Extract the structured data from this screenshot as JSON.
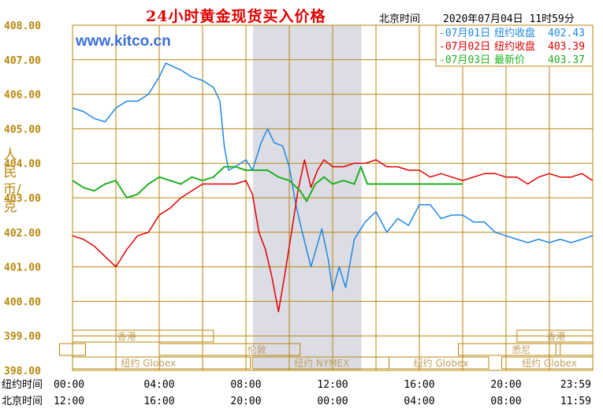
{
  "title": "24小时黄金现货买入价格",
  "header": {
    "beijing_time_label": "北京时间",
    "datetime": "2020年07月04日 11时59分"
  },
  "watermark": "www.kitco.cn",
  "y_unit_label": "人民币/克",
  "legend": [
    {
      "prefix": "-07月01日",
      "kind": "纽约收盘",
      "value": "402.43",
      "color": "#1e88e5"
    },
    {
      "prefix": "-07月02日",
      "kind": "纽约收盘",
      "value": "403.39",
      "color": "#e00000"
    },
    {
      "prefix": "-07月03日",
      "kind": "最新价",
      "value": "403.37",
      "color": "#22b022"
    }
  ],
  "row_labels": {
    "ny": "纽约时间",
    "bj": "北京时间"
  },
  "ny_times": [
    "00:00",
    "04:00",
    "08:00",
    "12:00",
    "16:00",
    "20:00",
    "23:59"
  ],
  "bj_times": [
    "12:00",
    "16:00",
    "20:00",
    "00:00",
    "04:00",
    "08:00",
    "11:59"
  ],
  "market_labels": {
    "hongkong": "香港",
    "london": "伦敦",
    "ny_globex": "纽约 Globex",
    "ny_nymex": "纽约 NYMEX",
    "sydney": "悉尼"
  },
  "colors": {
    "grid": "#b8860b",
    "axis_text": "#b8860b",
    "shade": "#dcdce4",
    "market_box": "#b8860b",
    "market_text": "#c0a060"
  },
  "chart_data": {
    "type": "line",
    "title": "24小时黄金现货买入价格",
    "ylabel": "人民币/克",
    "ylim": [
      398,
      408
    ],
    "xlim": [
      0,
      24
    ],
    "yticks": [
      "398.00",
      "399.00",
      "400.00",
      "401.00",
      "402.00",
      "403.00",
      "404.00",
      "405.00",
      "406.00",
      "407.00",
      "408.00"
    ],
    "x_unit": "hours (New York time)",
    "shaded_interval": [
      8.33,
      13.33
    ],
    "series": [
      {
        "name": "07月01日",
        "color": "#1e88e5",
        "close_label": "纽约收盘",
        "close_value": 402.43,
        "points": [
          [
            0,
            405.6
          ],
          [
            0.5,
            405.5
          ],
          [
            1,
            405.3
          ],
          [
            1.5,
            405.2
          ],
          [
            2,
            405.6
          ],
          [
            2.5,
            405.8
          ],
          [
            3,
            405.8
          ],
          [
            3.5,
            406.0
          ],
          [
            4,
            406.5
          ],
          [
            4.3,
            406.9
          ],
          [
            5,
            406.7
          ],
          [
            5.5,
            406.5
          ],
          [
            6,
            406.4
          ],
          [
            6.5,
            406.2
          ],
          [
            6.8,
            405.8
          ],
          [
            7.0,
            404.5
          ],
          [
            7.2,
            403.8
          ],
          [
            7.5,
            403.9
          ],
          [
            8,
            404.1
          ],
          [
            8.3,
            403.8
          ],
          [
            8.7,
            404.6
          ],
          [
            9,
            405.0
          ],
          [
            9.3,
            404.6
          ],
          [
            9.7,
            404.5
          ],
          [
            10,
            403.9
          ],
          [
            10.3,
            402.8
          ],
          [
            10.6,
            402.0
          ],
          [
            11,
            401.0
          ],
          [
            11.5,
            402.1
          ],
          [
            11.8,
            401.2
          ],
          [
            12,
            400.3
          ],
          [
            12.3,
            401.0
          ],
          [
            12.6,
            400.4
          ],
          [
            13,
            401.8
          ],
          [
            13.5,
            402.3
          ],
          [
            14,
            402.6
          ],
          [
            14.5,
            402.0
          ],
          [
            15,
            402.4
          ],
          [
            15.5,
            402.2
          ],
          [
            16,
            402.8
          ],
          [
            16.5,
            402.8
          ],
          [
            17,
            402.4
          ],
          [
            17.5,
            402.5
          ],
          [
            18,
            402.5
          ],
          [
            18.5,
            402.3
          ],
          [
            19,
            402.3
          ],
          [
            19.5,
            402.0
          ],
          [
            20,
            401.9
          ],
          [
            20.5,
            401.8
          ],
          [
            21,
            401.7
          ],
          [
            21.5,
            401.8
          ],
          [
            22,
            401.7
          ],
          [
            22.5,
            401.8
          ],
          [
            23,
            401.7
          ],
          [
            23.5,
            401.8
          ],
          [
            23.99,
            401.9
          ]
        ]
      },
      {
        "name": "07月02日",
        "color": "#e00000",
        "close_label": "纽约收盘",
        "close_value": 403.39,
        "points": [
          [
            0,
            401.9
          ],
          [
            0.5,
            401.8
          ],
          [
            1,
            401.6
          ],
          [
            1.5,
            401.3
          ],
          [
            2,
            401.0
          ],
          [
            2.5,
            401.5
          ],
          [
            3,
            401.9
          ],
          [
            3.5,
            402.0
          ],
          [
            4,
            402.5
          ],
          [
            4.5,
            402.7
          ],
          [
            5,
            403.0
          ],
          [
            5.5,
            403.2
          ],
          [
            6,
            403.4
          ],
          [
            6.5,
            403.4
          ],
          [
            7,
            403.4
          ],
          [
            7.5,
            403.4
          ],
          [
            8,
            403.5
          ],
          [
            8.3,
            403.1
          ],
          [
            8.6,
            402.0
          ],
          [
            8.9,
            401.5
          ],
          [
            9.2,
            400.7
          ],
          [
            9.5,
            399.7
          ],
          [
            9.8,
            400.8
          ],
          [
            10.1,
            402.0
          ],
          [
            10.4,
            403.2
          ],
          [
            10.7,
            404.1
          ],
          [
            11,
            403.3
          ],
          [
            11.3,
            403.8
          ],
          [
            11.6,
            404.1
          ],
          [
            12,
            403.9
          ],
          [
            12.5,
            403.9
          ],
          [
            13,
            404.0
          ],
          [
            13.5,
            404.0
          ],
          [
            14,
            404.1
          ],
          [
            14.5,
            403.9
          ],
          [
            15,
            403.9
          ],
          [
            15.5,
            403.8
          ],
          [
            16,
            403.8
          ],
          [
            16.5,
            403.6
          ],
          [
            17,
            403.7
          ],
          [
            17.5,
            403.6
          ],
          [
            18,
            403.5
          ],
          [
            18.5,
            403.6
          ],
          [
            19,
            403.7
          ],
          [
            19.5,
            403.7
          ],
          [
            20,
            403.6
          ],
          [
            20.5,
            403.6
          ],
          [
            21,
            403.4
          ],
          [
            21.5,
            403.6
          ],
          [
            22,
            403.7
          ],
          [
            22.5,
            403.6
          ],
          [
            23,
            403.6
          ],
          [
            23.5,
            403.7
          ],
          [
            23.99,
            403.5
          ]
        ]
      },
      {
        "name": "07月03日",
        "color": "#22b022",
        "close_label": "最新价",
        "close_value": 403.37,
        "points": [
          [
            0,
            403.5
          ],
          [
            0.5,
            403.3
          ],
          [
            1,
            403.2
          ],
          [
            1.5,
            403.4
          ],
          [
            2,
            403.5
          ],
          [
            2.5,
            403.0
          ],
          [
            3,
            403.1
          ],
          [
            3.5,
            403.4
          ],
          [
            4,
            403.6
          ],
          [
            4.5,
            403.5
          ],
          [
            5,
            403.4
          ],
          [
            5.5,
            403.6
          ],
          [
            6,
            403.5
          ],
          [
            6.5,
            403.6
          ],
          [
            7,
            403.9
          ],
          [
            7.5,
            403.9
          ],
          [
            8,
            403.8
          ],
          [
            8.5,
            403.8
          ],
          [
            9,
            403.8
          ],
          [
            9.5,
            403.6
          ],
          [
            10,
            403.5
          ],
          [
            10.5,
            403.2
          ],
          [
            10.8,
            402.9
          ],
          [
            11.2,
            403.4
          ],
          [
            11.6,
            403.6
          ],
          [
            12,
            403.4
          ],
          [
            12.5,
            403.5
          ],
          [
            13,
            403.4
          ],
          [
            13.3,
            403.9
          ],
          [
            13.6,
            403.4
          ],
          [
            14,
            403.4
          ],
          [
            15,
            403.4
          ],
          [
            16,
            403.4
          ],
          [
            17,
            403.4
          ],
          [
            18,
            403.4
          ]
        ]
      }
    ]
  }
}
